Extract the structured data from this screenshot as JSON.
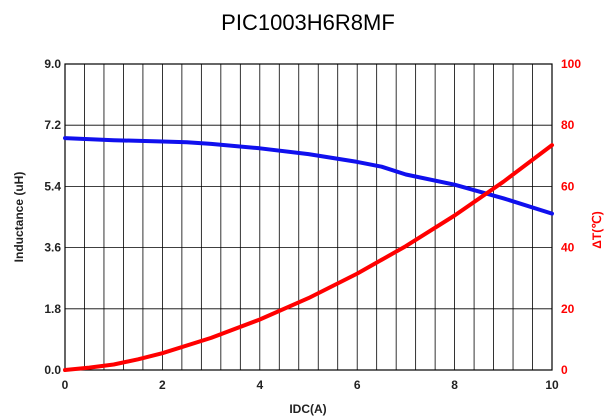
{
  "chart_data": {
    "type": "line",
    "title": "PIC1003H6R8MF",
    "xlabel": "IDC(A)",
    "ylabel": "Inductance (uH)",
    "y2label": "ΔT(℃)",
    "xlim": [
      0,
      10
    ],
    "ylim": [
      0,
      9
    ],
    "y2lim": [
      0,
      100
    ],
    "x_ticks": [
      "0",
      "2",
      "4",
      "6",
      "8",
      "10"
    ],
    "y_ticks": [
      "0.0",
      "1.8",
      "3.6",
      "5.4",
      "7.2",
      "9.0"
    ],
    "y2_ticks": [
      "0",
      "20",
      "40",
      "60",
      "80",
      "100"
    ],
    "x_minor_step": 0.4,
    "grid": true,
    "colors": {
      "inductance": "#1010ee",
      "temperature": "#ff0000",
      "grid": "#000000"
    },
    "series": [
      {
        "axis": "left",
        "color": "#1010ee",
        "x": [
          0,
          1,
          2,
          2.5,
          3,
          4,
          5,
          6,
          6.5,
          7,
          8,
          9,
          10
        ],
        "values": [
          6.82,
          6.76,
          6.72,
          6.7,
          6.65,
          6.52,
          6.35,
          6.12,
          5.98,
          5.75,
          5.45,
          5.05,
          4.6
        ]
      },
      {
        "axis": "right",
        "color": "#ff0000",
        "x": [
          0,
          0.5,
          1,
          1.5,
          2,
          3,
          4,
          5,
          6,
          7,
          8,
          9,
          10
        ],
        "values": [
          0,
          0.8,
          1.8,
          3.5,
          5.5,
          10.5,
          16.5,
          23.5,
          31.5,
          40.5,
          50.5,
          61.5,
          73.5
        ]
      }
    ]
  }
}
